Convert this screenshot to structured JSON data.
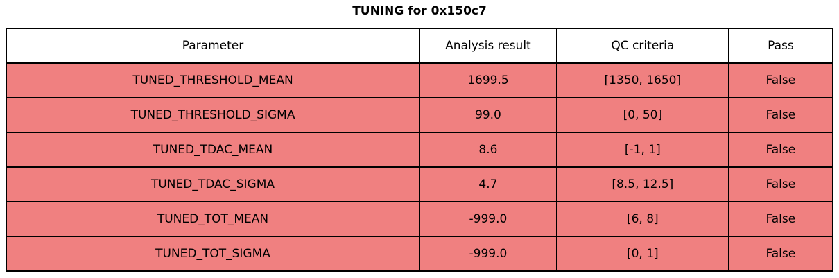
{
  "title": "TUNING for 0x150c7",
  "colors": {
    "fail_cell_bg": "#f08080",
    "header_bg": "#ffffff",
    "border": "#000000",
    "text": "#000000"
  },
  "chart_data": {
    "type": "table",
    "title": "TUNING for 0x150c7",
    "columns": [
      "Parameter",
      "Analysis result",
      "QC criteria",
      "Pass"
    ],
    "rows": [
      [
        "TUNED_THRESHOLD_MEAN",
        "1699.5",
        "[1350, 1650]",
        "False"
      ],
      [
        "TUNED_THRESHOLD_SIGMA",
        "99.0",
        "[0, 50]",
        "False"
      ],
      [
        "TUNED_TDAC_MEAN",
        "8.6",
        "[-1, 1]",
        "False"
      ],
      [
        "TUNED_TDAC_SIGMA",
        "4.7",
        "[8.5, 12.5]",
        "False"
      ],
      [
        "TUNED_TOT_MEAN",
        "-999.0",
        "[6, 8]",
        "False"
      ],
      [
        "TUNED_TOT_SIGMA",
        "-999.0",
        "[0, 1]",
        "False"
      ]
    ],
    "layout_hints": {
      "header_background": "white",
      "row_background": "light coral (fail highlight)",
      "all_rows_fail": true,
      "grid": "solid black borders",
      "title_position": "top-center"
    }
  }
}
